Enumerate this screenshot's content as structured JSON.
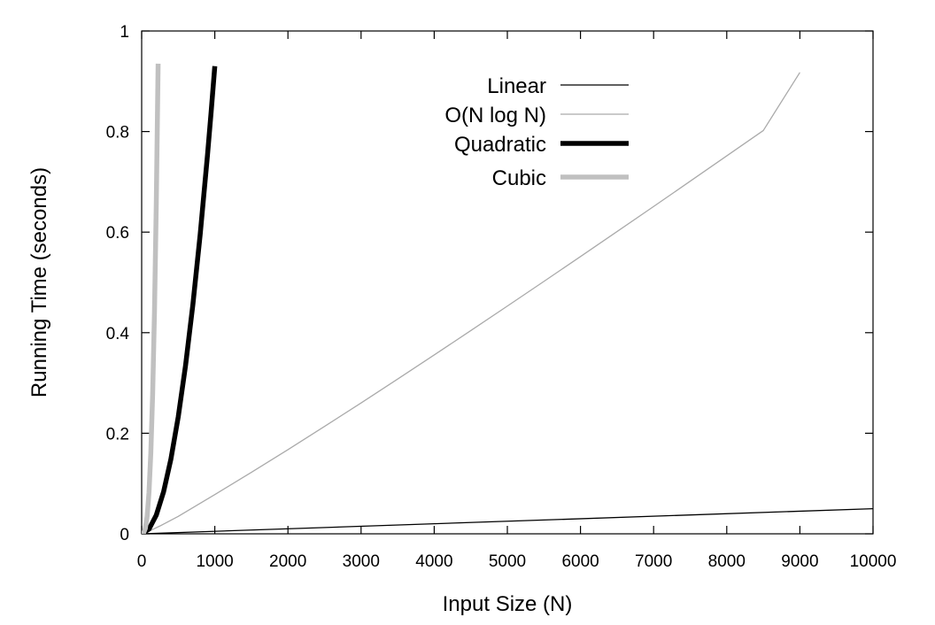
{
  "chart_data": {
    "type": "line",
    "title": "",
    "xlabel": "Input Size (N)",
    "ylabel": "Running Time (seconds)",
    "xlim": [
      0,
      10000
    ],
    "ylim": [
      0,
      1
    ],
    "x_ticks": [
      0,
      1000,
      2000,
      3000,
      4000,
      5000,
      6000,
      7000,
      8000,
      9000,
      10000
    ],
    "x_tick_labels": [
      "0",
      "1000",
      "2000",
      "3000",
      "4000",
      "5000",
      "6000",
      "7000",
      "8000",
      "9000",
      "10000"
    ],
    "y_ticks": [
      0,
      0.2,
      0.4,
      0.6,
      0.8,
      1
    ],
    "y_tick_labels": [
      "0",
      "0.2",
      "0.4",
      "0.6",
      "0.8",
      "1"
    ],
    "grid": false,
    "legend_position": "top-center",
    "series": [
      {
        "name": "Linear",
        "legend_label": "Linear",
        "color": "#000000",
        "line_weight": "thin",
        "x": [
          0,
          10000
        ],
        "y": [
          0,
          0.05
        ]
      },
      {
        "name": "O(N log N)",
        "legend_label": "O(N log N)",
        "color": "#aaaaaa",
        "line_weight": "thin",
        "x": [
          0,
          100,
          250,
          500,
          1000,
          1500,
          2000,
          2500,
          3000,
          3500,
          4000,
          4500,
          5000,
          5500,
          6000,
          6500,
          7000,
          7500,
          8000,
          8500,
          9000
        ],
        "y": [
          0,
          0.0052,
          0.0156,
          0.0347,
          0.0781,
          0.1222,
          0.1674,
          0.2135,
          0.2603,
          0.3078,
          0.3557,
          0.4041,
          0.4529,
          0.502,
          0.5514,
          0.6011,
          0.651,
          0.7012,
          0.7516,
          0.8021,
          0.9176
        ]
      },
      {
        "name": "Quadratic",
        "legend_label": "Quadratic",
        "color": "#000000",
        "line_weight": "thick",
        "x": [
          0,
          100,
          200,
          300,
          400,
          500,
          600,
          700,
          800,
          900,
          950,
          1000
        ],
        "y": [
          0,
          0.0093,
          0.0372,
          0.0837,
          0.1488,
          0.2325,
          0.3348,
          0.4557,
          0.5952,
          0.7533,
          0.8393,
          0.93
        ]
      },
      {
        "name": "Cubic",
        "legend_label": "Cubic",
        "color": "#c0c0c0",
        "line_weight": "thick",
        "x": [
          0,
          25,
          50,
          75,
          100,
          125,
          150,
          175,
          200,
          225
        ],
        "y": [
          0,
          0.0013,
          0.0103,
          0.0347,
          0.0822,
          0.1605,
          0.2773,
          0.4404,
          0.6574,
          0.935
        ]
      }
    ]
  }
}
